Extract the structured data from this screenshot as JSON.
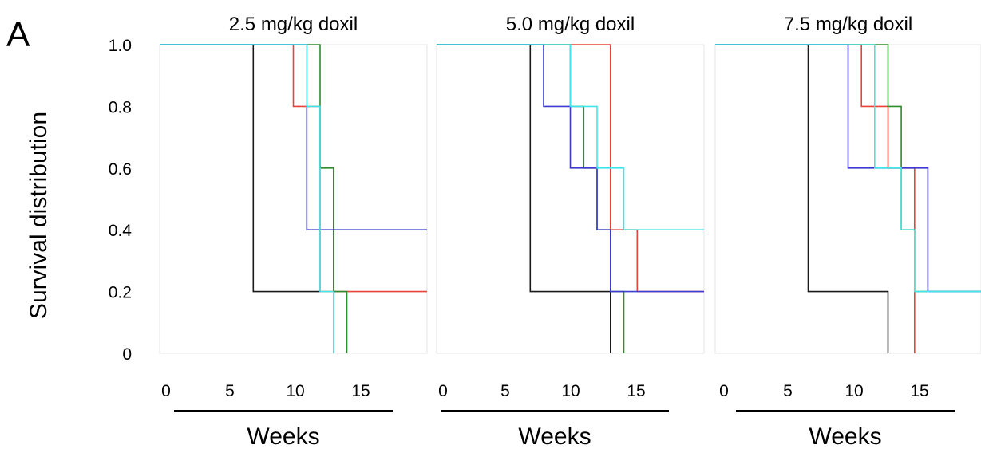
{
  "panel_label": "A",
  "ylabel": "Survival distribution",
  "y_ticks": [
    "1.0",
    "0.8",
    "0.6",
    "0.4",
    "0.2",
    "0"
  ],
  "colors": {
    "black": "#1a1a1a",
    "red": "#e8423a",
    "green": "#2e8b2e",
    "blue": "#3c3cd2",
    "cyan": "#3fe6e6"
  },
  "chart_data": [
    {
      "type": "line",
      "title": "2.5 mg/kg doxil",
      "xlabel": "Weeks",
      "x_ticks": [
        "0",
        "5",
        "10",
        "15"
      ],
      "xlim": [
        0,
        20
      ],
      "ylim": [
        0,
        1
      ],
      "series": [
        {
          "color": "black",
          "steps": [
            [
              0,
              1.0
            ],
            [
              7,
              0.2
            ],
            [
              12,
              0.2
            ]
          ]
        },
        {
          "color": "red",
          "steps": [
            [
              0,
              1.0
            ],
            [
              10,
              0.8
            ],
            [
              11,
              0.8
            ],
            [
              12,
              0.2
            ],
            [
              20,
              0.2
            ]
          ]
        },
        {
          "color": "green",
          "steps": [
            [
              0,
              1.0
            ],
            [
              12,
              0.6
            ],
            [
              13,
              0.2
            ],
            [
              14,
              0.0
            ]
          ]
        },
        {
          "color": "blue",
          "steps": [
            [
              0,
              1.0
            ],
            [
              11,
              0.4
            ],
            [
              20,
              0.4
            ]
          ]
        },
        {
          "color": "cyan",
          "steps": [
            [
              0,
              1.0
            ],
            [
              11,
              0.8
            ],
            [
              12,
              0.2
            ],
            [
              13,
              0.0
            ]
          ]
        }
      ]
    },
    {
      "type": "line",
      "title": "5.0 mg/kg doxil",
      "xlabel": "Weeks",
      "x_ticks": [
        "0",
        "5",
        "10",
        "15"
      ],
      "xlim": [
        0,
        20
      ],
      "ylim": [
        0,
        1
      ],
      "series": [
        {
          "color": "black",
          "steps": [
            [
              0,
              1.0
            ],
            [
              7,
              0.2
            ],
            [
              13,
              0.0
            ]
          ]
        },
        {
          "color": "red",
          "steps": [
            [
              0,
              1.0
            ],
            [
              13,
              0.4
            ],
            [
              15,
              0.2
            ],
            [
              20,
              0.2
            ]
          ]
        },
        {
          "color": "green",
          "steps": [
            [
              0,
              1.0
            ],
            [
              10,
              0.8
            ],
            [
              11,
              0.6
            ],
            [
              12,
              0.4
            ],
            [
              13,
              0.2
            ],
            [
              14,
              0.0
            ]
          ]
        },
        {
          "color": "blue",
          "steps": [
            [
              0,
              1.0
            ],
            [
              8,
              0.8
            ],
            [
              10,
              0.6
            ],
            [
              12,
              0.4
            ],
            [
              13,
              0.2
            ],
            [
              20,
              0.2
            ]
          ]
        },
        {
          "color": "cyan",
          "steps": [
            [
              0,
              1.0
            ],
            [
              10,
              0.8
            ],
            [
              12,
              0.6
            ],
            [
              14,
              0.4
            ],
            [
              20,
              0.4
            ]
          ]
        }
      ]
    },
    {
      "type": "line",
      "title": "7.5 mg/kg doxil",
      "xlabel": "Weeks",
      "x_ticks": [
        "0",
        "5",
        "10",
        "15"
      ],
      "xlim": [
        0,
        20
      ],
      "ylim": [
        0,
        1
      ],
      "series": [
        {
          "color": "black",
          "steps": [
            [
              0,
              1.0
            ],
            [
              7,
              0.2
            ],
            [
              13,
              0.0
            ]
          ]
        },
        {
          "color": "red",
          "steps": [
            [
              0,
              1.0
            ],
            [
              11,
              0.8
            ],
            [
              13,
              0.6
            ],
            [
              15,
              0.0
            ]
          ]
        },
        {
          "color": "green",
          "steps": [
            [
              0,
              1.0
            ],
            [
              13,
              0.8
            ],
            [
              14,
              0.4
            ],
            [
              15,
              0.2
            ],
            [
              20,
              0.2
            ]
          ]
        },
        {
          "color": "blue",
          "steps": [
            [
              0,
              1.0
            ],
            [
              10,
              0.6
            ],
            [
              16,
              0.2
            ],
            [
              20,
              0.2
            ]
          ]
        },
        {
          "color": "cyan",
          "steps": [
            [
              0,
              1.0
            ],
            [
              12,
              0.6
            ],
            [
              14,
              0.4
            ],
            [
              15,
              0.2
            ],
            [
              20,
              0.2
            ]
          ]
        }
      ]
    }
  ]
}
